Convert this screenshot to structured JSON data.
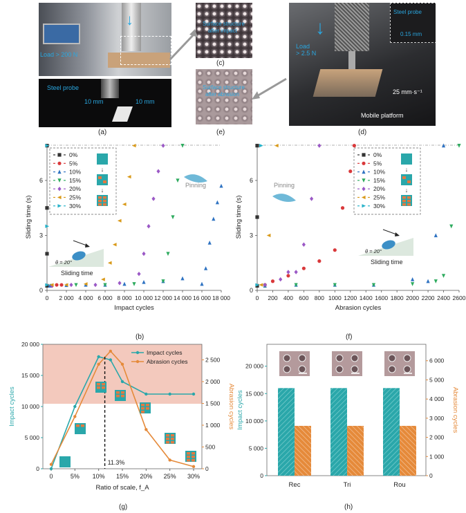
{
  "panel_labels": {
    "a": "(a)",
    "b": "(b)",
    "c": "(c)",
    "d": "(d)",
    "e": "(e)",
    "f": "(f)",
    "g": "(g)",
    "h": "(h)"
  },
  "photo_texts": {
    "load_a": "Load > 200 N",
    "steel_probe_a": "Steel probe",
    "dim_10mm_1": "10 mm",
    "dim_10mm_2": "10 mm",
    "load_d": "Load\n> 2.5 N",
    "steel_probe_d": "Steel probe",
    "probe_size": "0.15 mm",
    "speed": "25 mm·s⁻¹",
    "mobile_platform": "Mobile platform",
    "c_line1": "Surface structure",
    "c_line2": "after impact",
    "e_line1": "Surface structure",
    "e_line2": "after abrasion"
  },
  "colors": {
    "s0": "#333333",
    "s5": "#d9393b",
    "s10": "#2f73c2",
    "s15": "#2eab5f",
    "s20": "#9b59c6",
    "s25": "#d99a1a",
    "s30": "#27b2c9",
    "teal": "#2aa7aa",
    "orange": "#e58a3a",
    "pink": "#f3c9bd",
    "tile": "#e4793f"
  },
  "chart_data": [
    {
      "id": "b",
      "type": "scatter",
      "xlabel": "Impact cycles",
      "ylabel": "Sliding time (s)",
      "xlim": [
        0,
        18000
      ],
      "ylim": [
        0,
        8
      ],
      "xticks": [
        "0",
        "2 000",
        "4 000",
        "6 000",
        "8 000",
        "10 000",
        "12 000",
        "14 000",
        "16 000",
        "18 000"
      ],
      "yticks": [
        "0",
        "3",
        "6"
      ],
      "legend": [
        "0%",
        "5%",
        "10%",
        "15%",
        "20%",
        "25%",
        "30%"
      ],
      "annotations": {
        "pinning": "Pinning",
        "theta": "θ = 20°",
        "sliding": "Sliding time"
      },
      "series": [
        {
          "name": "0%",
          "x": [
            0,
            0,
            0,
            0
          ],
          "y": [
            0.25,
            2.0,
            4.5,
            7.9
          ]
        },
        {
          "name": "5%",
          "x": [
            500,
            1000,
            1500
          ],
          "y": [
            0.25,
            0.3,
            0.3
          ]
        },
        {
          "name": "10%",
          "x": [
            300,
            2000,
            4000,
            6000,
            8000,
            10000,
            12000,
            14000,
            16000,
            16400,
            16800,
            17200,
            17600,
            18000
          ],
          "y": [
            0.25,
            0.28,
            0.3,
            0.3,
            0.35,
            0.45,
            0.5,
            0.65,
            0.35,
            1.2,
            2.6,
            3.9,
            4.8,
            5.7
          ]
        },
        {
          "name": "15%",
          "x": [
            500,
            3000,
            6000,
            9000,
            12000,
            12500,
            13000,
            13500,
            14000
          ],
          "y": [
            0.25,
            0.3,
            0.3,
            0.35,
            0.5,
            2.0,
            4.0,
            6.0,
            7.9
          ]
        },
        {
          "name": "20%",
          "x": [
            500,
            2500,
            5000,
            7500,
            9500,
            10000,
            10500,
            11000,
            11500,
            12000
          ],
          "y": [
            0.25,
            0.3,
            0.3,
            0.4,
            0.9,
            2.0,
            3.5,
            5.0,
            6.5,
            7.9
          ]
        },
        {
          "name": "25%",
          "x": [
            500,
            2000,
            4000,
            5800,
            6500,
            7000,
            7500,
            8000,
            8500,
            9000
          ],
          "y": [
            0.3,
            0.3,
            0.35,
            0.6,
            1.5,
            2.5,
            3.8,
            4.7,
            6.2,
            7.9
          ]
        },
        {
          "name": "30%",
          "x": [
            0,
            0,
            0
          ],
          "y": [
            0.3,
            3.5,
            7.9
          ]
        }
      ]
    },
    {
      "id": "f",
      "type": "scatter",
      "xlabel": "Abrasion cycles",
      "ylabel": "Sliding time (s)",
      "xlim": [
        0,
        2600
      ],
      "ylim": [
        0,
        8
      ],
      "xticks": [
        "0",
        "200",
        "400",
        "600",
        "800",
        "1000",
        "1200",
        "1400",
        "1600",
        "1800",
        "2000",
        "2200",
        "2400",
        "2600"
      ],
      "yticks": [
        "0",
        "3",
        "6"
      ],
      "legend": [
        "0%",
        "5%",
        "10%",
        "15%",
        "20%",
        "25%",
        "30%"
      ],
      "annotations": {
        "pinning": "Pinning",
        "theta": "θ = 20°",
        "sliding": "Sliding time"
      },
      "series": [
        {
          "name": "0%",
          "x": [
            0,
            0,
            0
          ],
          "y": [
            0.25,
            4.0,
            7.9
          ]
        },
        {
          "name": "5%",
          "x": [
            100,
            200,
            400,
            600,
            800,
            1000,
            1100,
            1200,
            1250
          ],
          "y": [
            0.3,
            0.5,
            0.8,
            1.2,
            1.6,
            2.2,
            4.5,
            6.5,
            7.9
          ]
        },
        {
          "name": "10%",
          "x": [
            100,
            500,
            1000,
            1500,
            2000,
            2200,
            2300,
            2400
          ],
          "y": [
            0.25,
            0.3,
            0.3,
            0.3,
            0.6,
            0.5,
            3.0,
            7.9
          ]
        },
        {
          "name": "15%",
          "x": [
            100,
            500,
            1000,
            1500,
            2000,
            2300,
            2400,
            2500,
            2600
          ],
          "y": [
            0.25,
            0.3,
            0.3,
            0.3,
            0.35,
            0.5,
            0.8,
            3.5,
            7.9
          ]
        },
        {
          "name": "20%",
          "x": [
            100,
            300,
            400,
            500,
            600,
            700,
            800
          ],
          "y": [
            0.3,
            0.6,
            1.0,
            1.0,
            2.5,
            5.0,
            7.9
          ]
        },
        {
          "name": "25%",
          "x": [
            50,
            150,
            250
          ],
          "y": [
            0.3,
            3.0,
            7.9
          ]
        },
        {
          "name": "30%",
          "x": [
            0,
            50
          ],
          "y": [
            0.3,
            7.9
          ]
        }
      ]
    },
    {
      "id": "g",
      "type": "line",
      "xlabel": "Ratio of scale, f_A",
      "ylabel": "Impact cycles",
      "ylabel_right": "Abrasion cycles",
      "categories": [
        "0",
        "5%",
        "10%",
        "15%",
        "20%",
        "25%",
        "30%"
      ],
      "ylim": [
        0,
        20000
      ],
      "ylim_right": [
        0,
        2857
      ],
      "yticks_left": [
        "0",
        "5 000",
        "10 000",
        "15 000",
        "20 000"
      ],
      "yticks_right": [
        "0",
        "500",
        "1 000",
        "1 500",
        "2 000",
        "2 500"
      ],
      "annotation": "11.3%",
      "series": [
        {
          "name": "Impact cycles",
          "x": [
            0,
            5,
            10,
            12.5,
            15,
            20,
            25,
            30
          ],
          "values": [
            0,
            10000,
            18000,
            17500,
            14000,
            12000,
            12000,
            12000
          ]
        },
        {
          "name": "Abrasion cycles",
          "x": [
            0,
            5,
            10,
            12.5,
            15,
            20,
            25,
            30
          ],
          "values": [
            100,
            1200,
            2400,
            2700,
            2400,
            900,
            200,
            50
          ]
        }
      ]
    },
    {
      "id": "h",
      "type": "bar",
      "categories": [
        "Rec",
        "Tri",
        "Rou"
      ],
      "ylabel": "Impact cycles",
      "ylabel_right": "Abrasion cycles",
      "ylim": [
        0,
        24000
      ],
      "ylim_right": [
        0,
        6857
      ],
      "yticks_left": [
        "0",
        "5 000",
        "10 000",
        "15 000",
        "20 000"
      ],
      "yticks_right": [
        "0",
        "1 000",
        "2 000",
        "3 000",
        "4 000",
        "5 000",
        "6 000"
      ],
      "series": [
        {
          "name": "Impact cycles",
          "values": [
            16000,
            16000,
            16000
          ]
        },
        {
          "name": "Abrasion cycles",
          "values": [
            2600,
            2600,
            2600
          ]
        }
      ]
    }
  ]
}
